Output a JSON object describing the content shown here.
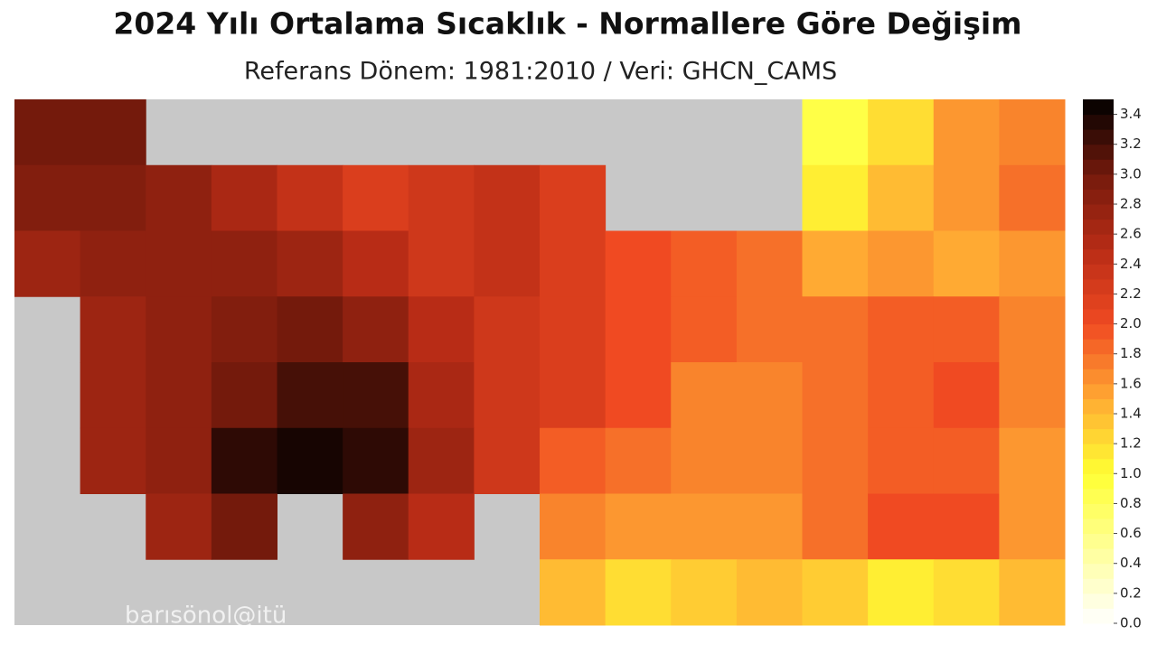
{
  "chart_data": {
    "type": "heatmap",
    "title": "2024 Yılı Ortalama Sıcaklık - Normallere Göre Değişim",
    "subtitle": "Referans Dönem: 1981:2010 / Veri: GHCN_CAMS",
    "watermark": "barısönol@itü",
    "land_color": "#c8c8c8",
    "values": [
      [
        3.0,
        3.0,
        null,
        null,
        null,
        null,
        null,
        null,
        null,
        null,
        null,
        null,
        0.9,
        1.2,
        1.6,
        1.7
      ],
      [
        2.9,
        2.9,
        2.8,
        2.6,
        2.4,
        2.2,
        2.3,
        2.4,
        2.2,
        null,
        null,
        null,
        1.1,
        1.4,
        1.6,
        1.8
      ],
      [
        2.7,
        2.8,
        2.8,
        2.8,
        2.7,
        2.5,
        2.3,
        2.4,
        2.2,
        2.0,
        1.9,
        1.8,
        1.5,
        1.6,
        1.5,
        1.6
      ],
      [
        null,
        2.7,
        2.8,
        2.9,
        3.0,
        2.8,
        2.5,
        2.3,
        2.2,
        2.0,
        1.9,
        1.8,
        1.8,
        1.9,
        1.9,
        1.7
      ],
      [
        null,
        2.7,
        2.8,
        3.0,
        3.2,
        3.2,
        2.6,
        2.3,
        2.2,
        2.0,
        1.7,
        1.7,
        1.8,
        1.9,
        2.0,
        1.7
      ],
      [
        null,
        2.7,
        2.8,
        3.3,
        3.4,
        3.3,
        2.7,
        2.3,
        1.9,
        1.8,
        1.7,
        1.7,
        1.8,
        1.9,
        1.9,
        1.6
      ],
      [
        null,
        null,
        2.7,
        3.0,
        null,
        2.8,
        2.5,
        null,
        1.7,
        1.6,
        1.6,
        1.6,
        1.8,
        2.0,
        2.0,
        1.6
      ],
      [
        null,
        null,
        null,
        null,
        null,
        null,
        null,
        null,
        1.4,
        1.2,
        1.3,
        1.4,
        1.3,
        1.1,
        1.2,
        1.4
      ]
    ],
    "clim": [
      0,
      3.5
    ],
    "colormap": [
      {
        "value": 0,
        "color": "#ffffff"
      },
      {
        "value": 0.5,
        "color": "#ffff99"
      },
      {
        "value": 1.0,
        "color": "#ffff33"
      },
      {
        "value": 1.5,
        "color": "#ffaa33"
      },
      {
        "value": 2.0,
        "color": "#f04a22"
      },
      {
        "value": 2.5,
        "color": "#b82c16"
      },
      {
        "value": 3.0,
        "color": "#741a0c"
      },
      {
        "value": 3.5,
        "color": "#000000"
      }
    ],
    "cticks": [
      {
        "value": 0,
        "label": "0.0"
      },
      0.2,
      0.4,
      0.6,
      0.8,
      {
        "value": 1,
        "label": "1.0"
      },
      1.2,
      1.4,
      1.6,
      1.8,
      {
        "value": 2,
        "label": "2.0"
      },
      2.2,
      2.4,
      2.6,
      2.8,
      {
        "value": 3,
        "label": "3.0"
      },
      3.2,
      3.4
    ]
  }
}
